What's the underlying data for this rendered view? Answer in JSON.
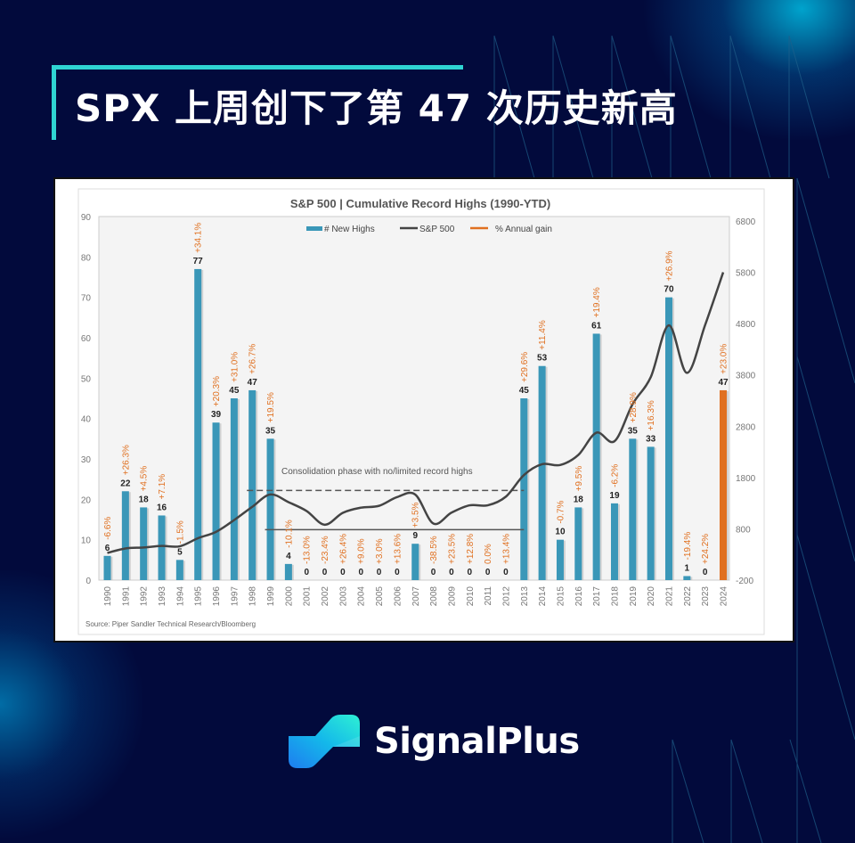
{
  "header": {
    "title": "SPX 上周创下了第 47 次历史新高"
  },
  "brand": {
    "name": "SignalPlus",
    "accent": "#2fd4d2",
    "background": "#020a3c"
  },
  "chart_data": {
    "type": "bar",
    "title": "S&P 500 | Cumulative Record Highs (1990-YTD)",
    "source": "Source: Piper Sandler Technical Research/Bloomberg",
    "annotation": "Consolidation phase with no/limited record highs",
    "legend": [
      {
        "label": "# New Highs",
        "color": "#3a97b8",
        "kind": "bar"
      },
      {
        "label": "S&P 500",
        "color": "#444444",
        "kind": "line"
      },
      {
        "label": "% Annual gain",
        "color": "#e07020",
        "kind": "line"
      }
    ],
    "legend_position": "top",
    "xlabel": "",
    "ylabel_left": "",
    "ylabel_right": "",
    "ylim_left": [
      0,
      90
    ],
    "yticks_left": [
      0,
      10,
      20,
      30,
      40,
      50,
      60,
      70,
      80,
      90
    ],
    "ylim_right": [
      -200,
      6800
    ],
    "yticks_right": [
      -200,
      800,
      1800,
      2800,
      3800,
      4800,
      5800,
      6800
    ],
    "categories": [
      "1990",
      "1991",
      "1992",
      "1993",
      "1994",
      "1995",
      "1996",
      "1997",
      "1998",
      "1999",
      "2000",
      "2001",
      "2002",
      "2003",
      "2004",
      "2005",
      "2006",
      "2007",
      "2008",
      "2009",
      "2010",
      "2011",
      "2012",
      "2013",
      "2014",
      "2015",
      "2016",
      "2017",
      "2018",
      "2019",
      "2020",
      "2021",
      "2022",
      "2023",
      "2024"
    ],
    "series": [
      {
        "name": "# New Highs",
        "axis": "left",
        "values": [
          6,
          22,
          18,
          16,
          5,
          77,
          39,
          45,
          47,
          35,
          4,
          0,
          0,
          0,
          0,
          0,
          0,
          9,
          0,
          0,
          0,
          0,
          0,
          45,
          53,
          10,
          18,
          61,
          19,
          35,
          33,
          70,
          1,
          0,
          47
        ],
        "highlight_last": "#e07020"
      },
      {
        "name": "% Annual gain",
        "labels": [
          "-6.6%",
          "+26.3%",
          "+4.5%",
          "+7.1%",
          "-1.5%",
          "+34.1%",
          "+20.3%",
          "+31.0%",
          "+26.7%",
          "+19.5%",
          "-10.1%",
          "-13.0%",
          "-23.4%",
          "+26.4%",
          "+9.0%",
          "+3.0%",
          "+13.6%",
          "+3.5%",
          "-38.5%",
          "+23.5%",
          "+12.8%",
          "0.0%",
          "+13.4%",
          "+29.6%",
          "+11.4%",
          "-0.7%",
          "+9.5%",
          "+19.4%",
          "-6.2%",
          "+28.9%",
          "+16.3%",
          "+26.9%",
          "-19.4%",
          "+24.2%",
          "+23.0%"
        ]
      },
      {
        "name": "S&P 500",
        "axis": "right",
        "values": [
          330,
          417,
          436,
          466,
          459,
          616,
          741,
          970,
          1229,
          1469,
          1320,
          1148,
          880,
          1112,
          1212,
          1248,
          1418,
          1468,
          903,
          1115,
          1258,
          1258,
          1426,
          1848,
          2059,
          2044,
          2239,
          2674,
          2507,
          3231,
          3756,
          4766,
          3840,
          4770,
          5800
        ]
      }
    ],
    "reference_lines": [
      {
        "style": "dashed",
        "level_left": 22.2,
        "from": "1998",
        "to": "2013"
      },
      {
        "style": "solid",
        "level_left": 12.5,
        "from": "1999",
        "to": "2013"
      }
    ],
    "grid": false
  }
}
